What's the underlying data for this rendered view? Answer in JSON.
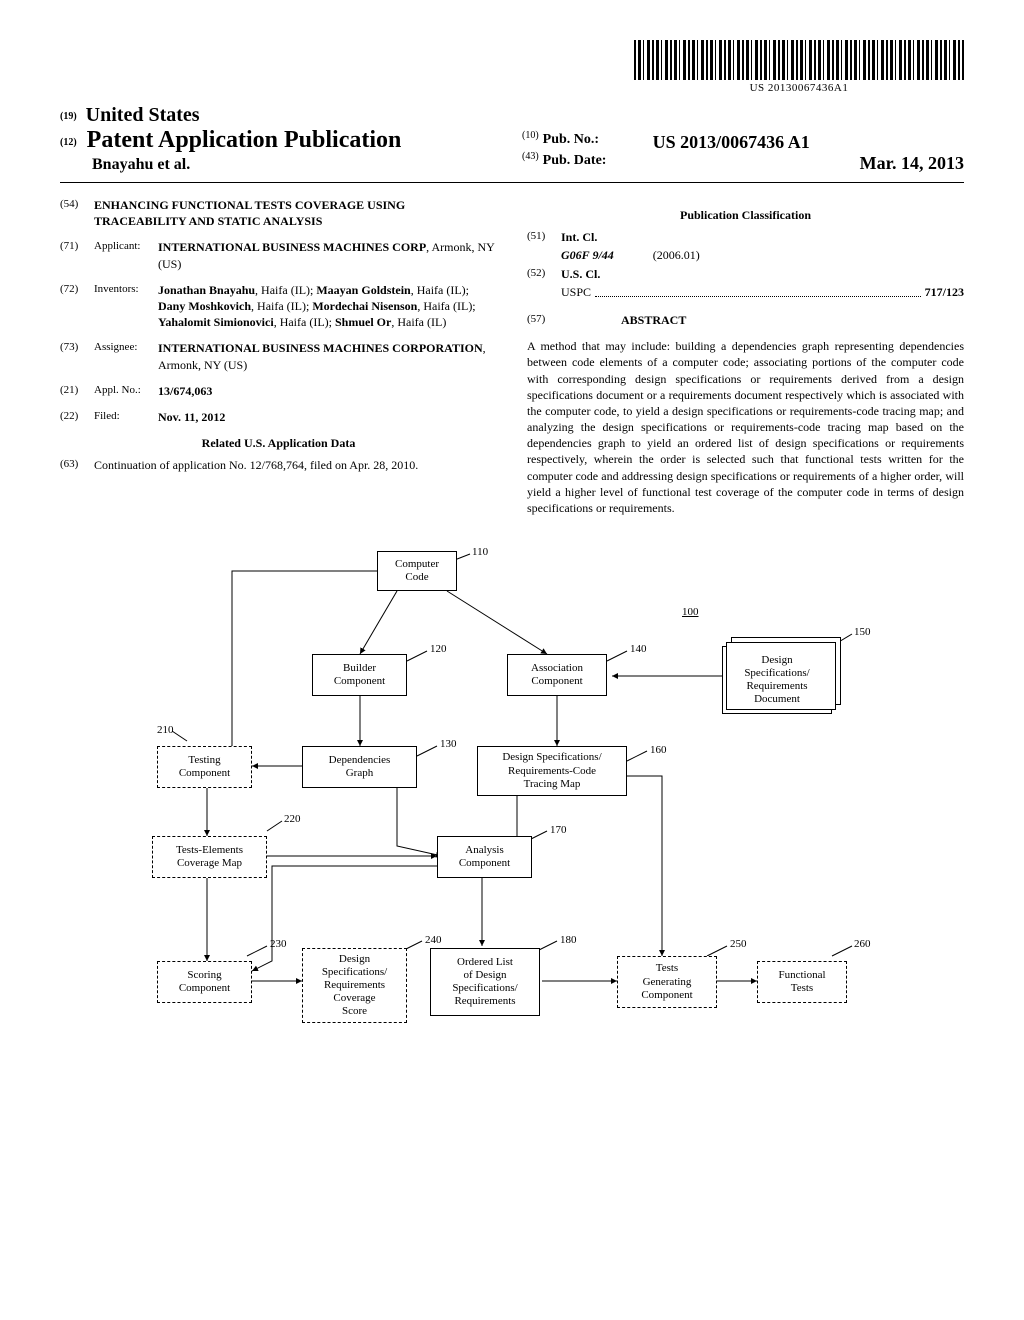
{
  "barcode_text": "US 20130067436A1",
  "header": {
    "country_prefix": "(19)",
    "country": "United States",
    "pub_prefix": "(12)",
    "pub_title": "Patent Application Publication",
    "authors": "Bnayahu et al.",
    "pub_no_prefix": "(10)",
    "pub_no_label": "Pub. No.:",
    "pub_no_value": "US 2013/0067436 A1",
    "pub_date_prefix": "(43)",
    "pub_date_label": "Pub. Date:",
    "pub_date_value": "Mar. 14, 2013"
  },
  "left_col": {
    "title_num": "(54)",
    "title": "ENHANCING FUNCTIONAL TESTS COVERAGE USING TRACEABILITY AND STATIC ANALYSIS",
    "applicant_num": "(71)",
    "applicant_label": "Applicant:",
    "applicant": "INTERNATIONAL BUSINESS MACHINES CORP",
    "applicant_loc": ", Armonk, NY (US)",
    "inventors_num": "(72)",
    "inventors_label": "Inventors:",
    "inventors": "Jonathan Bnayahu, Haifa (IL); Maayan Goldstein, Haifa (IL); Dany Moshkovich, Haifa (IL); Mordechai Nisenson, Haifa (IL); Yahalomit Simionovici, Haifa (IL); Shmuel Or, Haifa (IL)",
    "assignee_num": "(73)",
    "assignee_label": "Assignee:",
    "assignee": "INTERNATIONAL BUSINESS MACHINES CORPORATION",
    "assignee_loc": ", Armonk, NY (US)",
    "appl_num": "(21)",
    "appl_label": "Appl. No.:",
    "appl_value": "13/674,063",
    "filed_num": "(22)",
    "filed_label": "Filed:",
    "filed_value": "Nov. 11, 2012",
    "related_title": "Related U.S. Application Data",
    "continuation_num": "(63)",
    "continuation": "Continuation of application No. 12/768,764, filed on Apr. 28, 2010."
  },
  "right_col": {
    "classification_title": "Publication Classification",
    "intcl_num": "(51)",
    "intcl_label": "Int. Cl.",
    "intcl_code": "G06F 9/44",
    "intcl_date": "(2006.01)",
    "uscl_num": "(52)",
    "uscl_label": "U.S. Cl.",
    "uspc_label": "USPC",
    "uspc_value": "717/123",
    "abstract_num": "(57)",
    "abstract_label": "ABSTRACT",
    "abstract_text": "A method that may include: building a dependencies graph representing dependencies between code elements of a computer code; associating portions of the computer code with corresponding design specifications or requirements derived from a design specifications document or a requirements document respectively which is associated with the computer code, to yield a design specifications or requirements-code tracing map; and analyzing the design specifications or requirements-code tracing map based on the dependencies graph to yield an ordered list of design specifications or requirements respectively, wherein the order is selected such that functional tests written for the computer code and addressing design specifications or requirements of a higher order, will yield a higher level of functional test coverage of the computer code in terms of design specifications or requirements."
  },
  "diagram": {
    "ref_100": "100",
    "nodes": {
      "n110": {
        "label": "Computer\nCode",
        "ref": "110"
      },
      "n120": {
        "label": "Builder\nComponent",
        "ref": "120"
      },
      "n140": {
        "label": "Association\nComponent",
        "ref": "140"
      },
      "n150": {
        "label": "Design\nSpecifications/\nRequirements\nDocument",
        "ref": "150"
      },
      "n210": {
        "label": "Testing\nComponent",
        "ref": "210"
      },
      "n130": {
        "label": "Dependencies\nGraph",
        "ref": "130"
      },
      "n160": {
        "label": "Design Specifications/\nRequirements-Code\nTracing Map",
        "ref": "160"
      },
      "n220": {
        "label": "Tests-Elements\nCoverage Map",
        "ref": "220"
      },
      "n170": {
        "label": "Analysis\nComponent",
        "ref": "170"
      },
      "n230": {
        "label": "Scoring\nComponent",
        "ref": "230"
      },
      "n240": {
        "label": "Design\nSpecifications/\nRequirements\nCoverage\nScore",
        "ref": "240"
      },
      "n180": {
        "label": "Ordered List\nof Design\nSpecifications/\nRequirements",
        "ref": "180"
      },
      "n250": {
        "label": "Tests\nGenerating\nComponent",
        "ref": "250"
      },
      "n260": {
        "label": "Functional\nTests",
        "ref": "260"
      }
    }
  }
}
